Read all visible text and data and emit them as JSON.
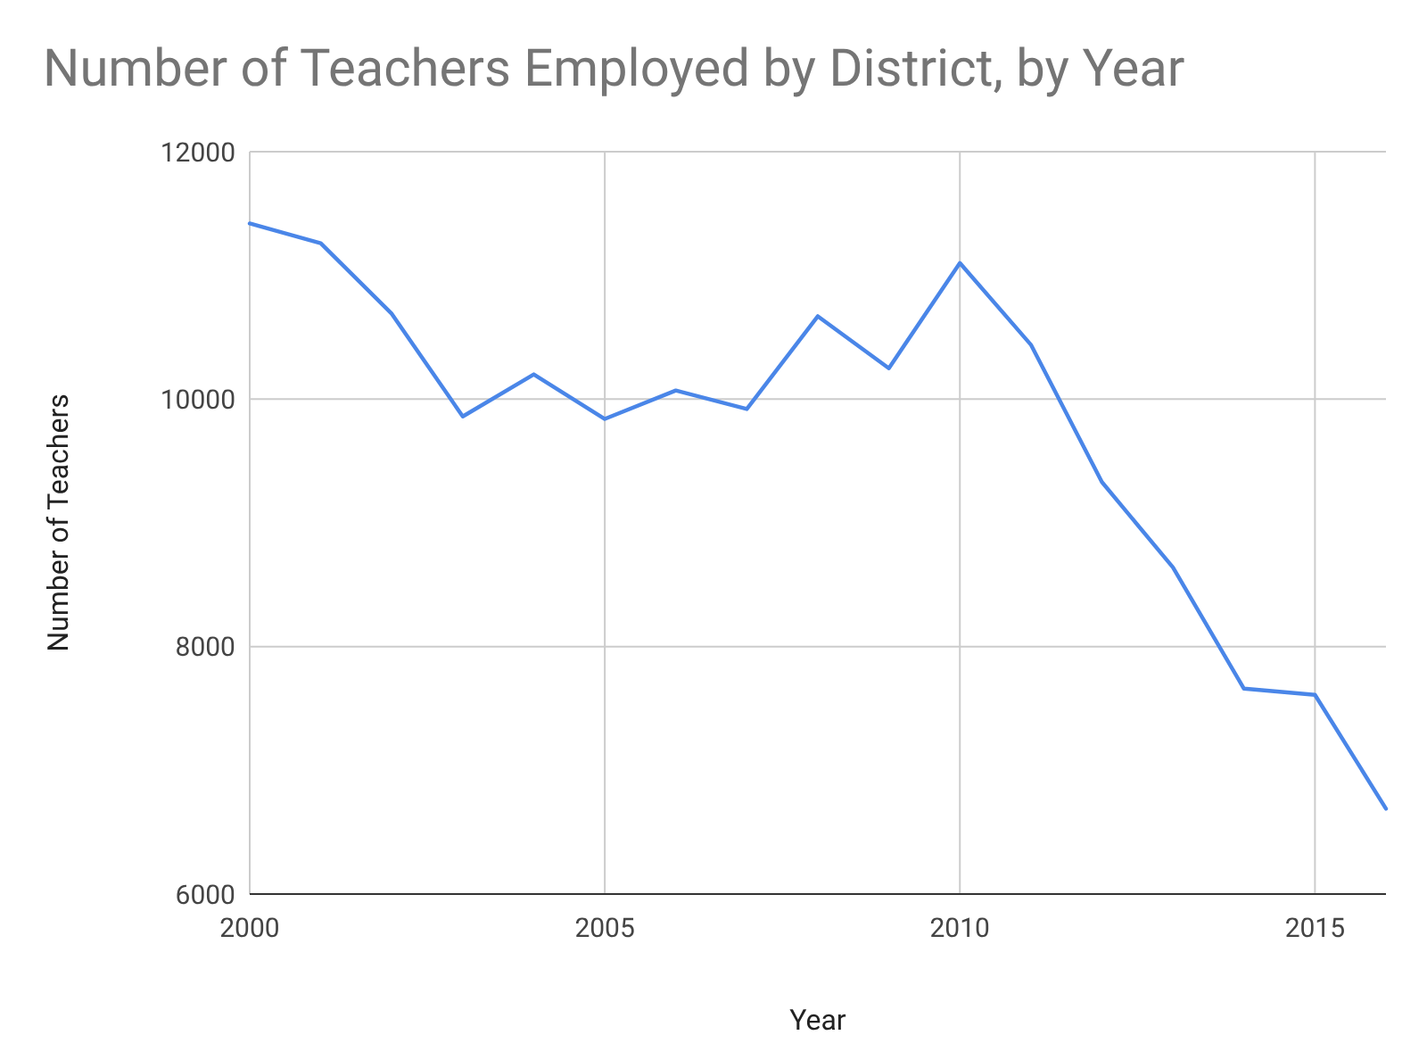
{
  "chart_data": {
    "type": "line",
    "title": "Number of Teachers Employed by District, by Year",
    "xlabel": "Year",
    "ylabel": "Number of Teachers",
    "x": [
      2000,
      2001,
      2002,
      2003,
      2004,
      2005,
      2006,
      2007,
      2008,
      2009,
      2010,
      2011,
      2012,
      2013,
      2014,
      2015,
      2016
    ],
    "series": [
      {
        "color": "#4a86e8",
        "values": [
          11420,
          11260,
          10690,
          9860,
          10200,
          9840,
          10070,
          9920,
          10670,
          10250,
          11100,
          10440,
          9330,
          8640,
          7660,
          7610,
          6690
        ]
      }
    ],
    "xlim": [
      2000,
      2016
    ],
    "xticks": [
      2000,
      2005,
      2010,
      2015
    ],
    "ylim": [
      6000,
      12000
    ],
    "yticks": [
      6000,
      8000,
      10000,
      12000
    ],
    "grid": true,
    "line_style": "solid",
    "marker": "none"
  }
}
